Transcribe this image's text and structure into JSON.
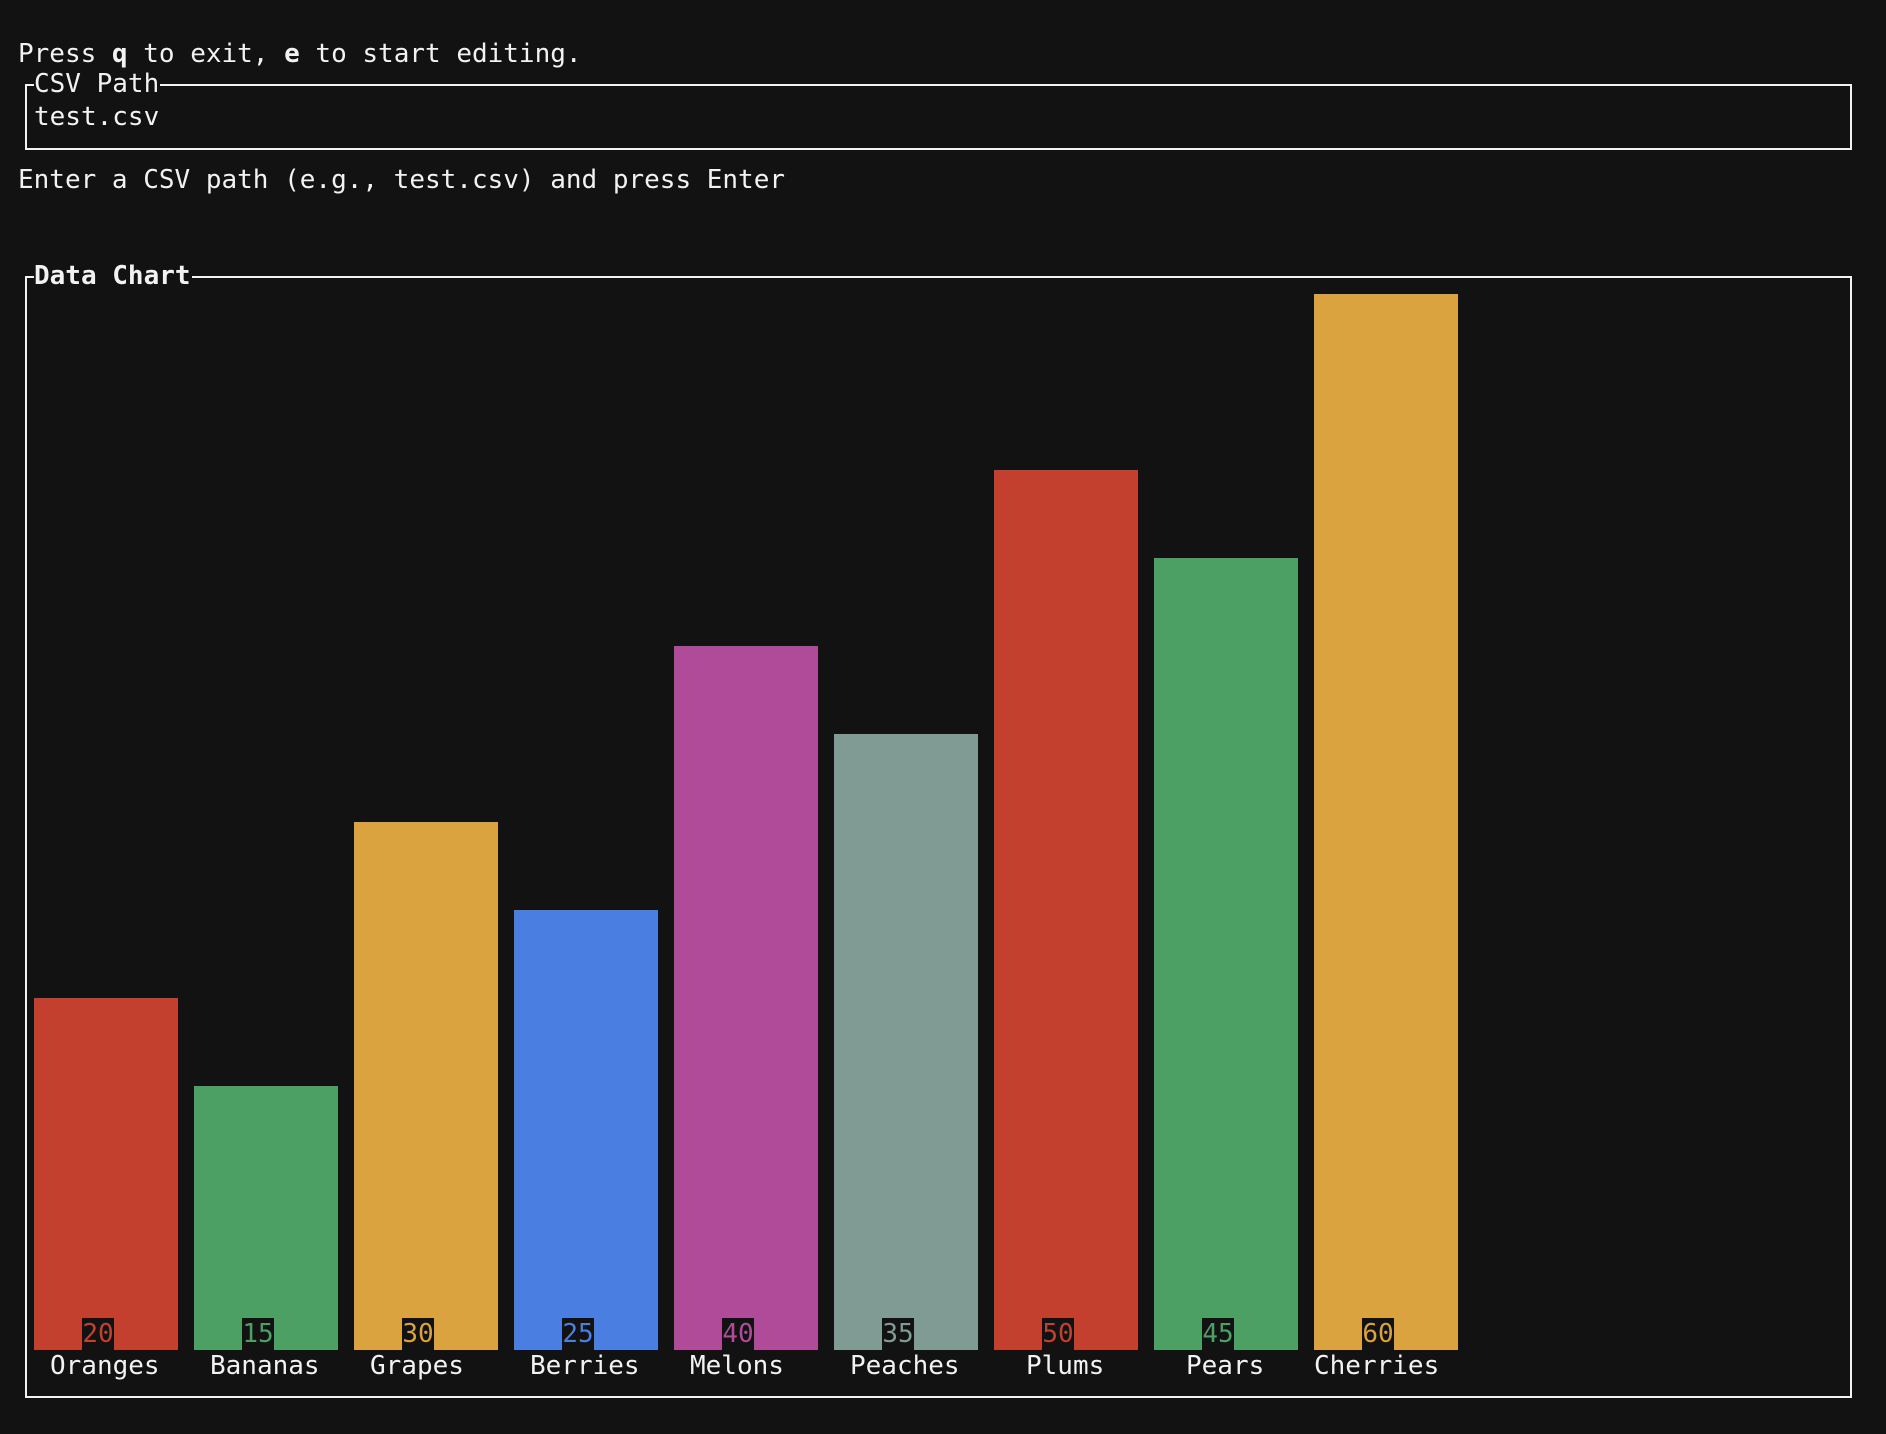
{
  "header": {
    "hint_prefix": "Press ",
    "hint_key_quit": "q",
    "hint_mid": " to exit, ",
    "hint_key_edit": "e",
    "hint_suffix": " to start editing."
  },
  "csv_input": {
    "title": "CSV Path",
    "value": "test.csv"
  },
  "instruction": "Enter a CSV path (e.g., test.csv) and press Enter",
  "chart_panel": {
    "title": "Data Chart"
  },
  "colors": {
    "background": "#121212",
    "foreground": "#f2f2f2",
    "red": "#C33F2E",
    "green": "#4CA064",
    "yellow": "#DBA33F",
    "blue": "#4A7FE1",
    "magenta": "#AF4B99",
    "gray": "#809B93"
  },
  "chart_data": {
    "type": "bar",
    "title": "Data Chart",
    "xlabel": "",
    "ylabel": "",
    "ylim": [
      0,
      60
    ],
    "grid": false,
    "legend": "none",
    "categories": [
      "Oranges",
      "Bananas",
      "Grapes",
      "Berries",
      "Melons",
      "Peaches",
      "Plums",
      "Pears",
      "Cherries"
    ],
    "values": [
      20,
      15,
      30,
      25,
      40,
      35,
      50,
      45,
      60
    ],
    "bar_colors": [
      "#C33F2E",
      "#4CA064",
      "#DBA33F",
      "#4A7FE1",
      "#AF4B99",
      "#809B93",
      "#C33F2E",
      "#4CA064",
      "#DBA33F"
    ],
    "value_labels": [
      "20",
      "15",
      "30",
      "25",
      "40",
      "35",
      "50",
      "45",
      "60"
    ]
  }
}
